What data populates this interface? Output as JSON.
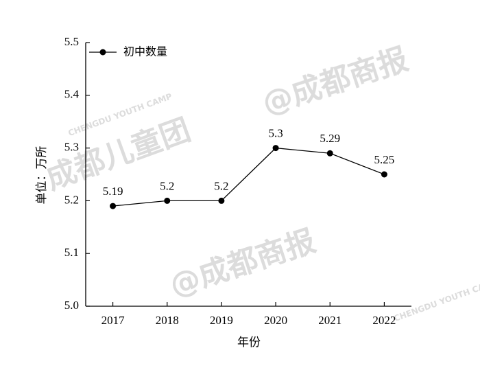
{
  "chart_data": {
    "type": "line",
    "title": null,
    "x_label": "年份",
    "y_label": "单位：万所",
    "categories": [
      "2017",
      "2018",
      "2019",
      "2020",
      "2021",
      "2022"
    ],
    "series": [
      {
        "name": "初中数量",
        "color": "#000000",
        "values": [
          5.19,
          5.2,
          5.2,
          5.3,
          5.29,
          5.25
        ]
      }
    ],
    "ylim": [
      5,
      5.5
    ],
    "yticks": [
      {
        "value": 5,
        "label": "5.0"
      },
      5.1,
      5.2,
      5.3,
      5.4,
      5.5
    ],
    "legend": "top-left",
    "watermarks": [
      "@成都商报",
      "成都儿童团",
      "CHENGDU YOUTH CAMP"
    ]
  }
}
